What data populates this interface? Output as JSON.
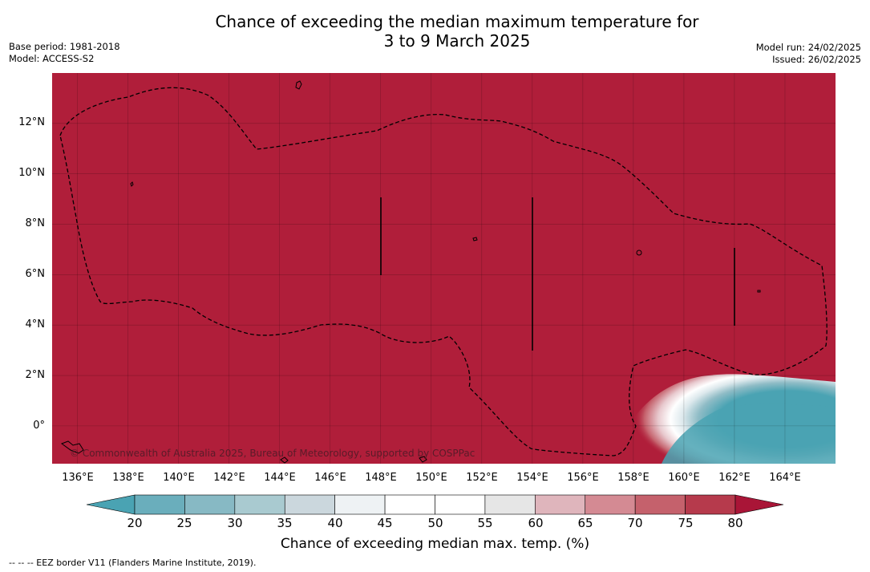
{
  "title": {
    "line1": "Chance of exceeding the median maximum temperature for",
    "line2": "3 to 9 March 2025"
  },
  "meta_left": {
    "base_period": "Base period: 1981-2018",
    "model": "Model: ACCESS-S2"
  },
  "meta_right": {
    "model_run": "Model run: 24/02/2025",
    "issued": "Issued: 26/02/2025"
  },
  "map": {
    "lon_labels": [
      "136°E",
      "138°E",
      "140°E",
      "142°E",
      "144°E",
      "146°E",
      "148°E",
      "150°E",
      "152°E",
      "154°E",
      "156°E",
      "158°E",
      "160°E",
      "162°E",
      "164°E"
    ],
    "lat_labels": [
      "12°N",
      "10°N",
      "8°N",
      "6°N",
      "4°N",
      "2°N",
      "0°"
    ],
    "lon_range": [
      135,
      166
    ],
    "lat_range": [
      -1.5,
      14
    ],
    "dominant_color": "#B01E3A",
    "low_probability_color": "#4AA3B3",
    "copyright": "© Commonwealth of Australia 2025, Bureau of Meteorology, supported by COSPPac"
  },
  "colorbar": {
    "labels": [
      "20",
      "25",
      "30",
      "35",
      "40",
      "45",
      "50",
      "55",
      "60",
      "65",
      "70",
      "75",
      "80"
    ],
    "colors": [
      "#5FA9B9",
      "#6AAEBC",
      "#87B9C4",
      "#A9CAD0",
      "#CBD7DD",
      "#EEF2F4",
      "#FFFFFF",
      "#FFFFFF",
      "#E6E6E6",
      "#DFB5BC",
      "#D48A93",
      "#C5616C",
      "#B63A4C",
      "#A91537"
    ],
    "title": "Chance of exceeding median max. temp. (%)"
  },
  "footer": {
    "eez_note": "--  --  -- EEZ border V11 (Flanders Marine Institute, 2019)."
  }
}
